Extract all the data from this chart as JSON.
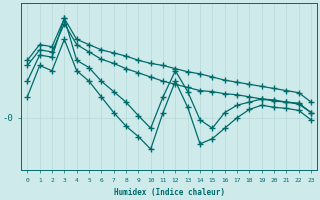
{
  "xlabel": "Humidex (Indice chaleur)",
  "ylabel": "-0",
  "background_color": "#ceeaea",
  "line_color": "#006b6b",
  "x_values": [
    0,
    1,
    2,
    3,
    4,
    5,
    6,
    7,
    8,
    9,
    10,
    11,
    12,
    13,
    14,
    15,
    16,
    17,
    18,
    19,
    20,
    21,
    22,
    23
  ],
  "series_smooth1": [
    5.5,
    7.0,
    6.8,
    9.5,
    7.5,
    7.0,
    6.5,
    6.2,
    5.9,
    5.5,
    5.2,
    5.0,
    4.7,
    4.4,
    4.2,
    3.9,
    3.6,
    3.4,
    3.2,
    3.0,
    2.8,
    2.6,
    2.4,
    1.5
  ],
  "series_smooth2": [
    5.0,
    6.5,
    6.3,
    9.0,
    7.0,
    6.3,
    5.6,
    5.2,
    4.7,
    4.3,
    3.9,
    3.5,
    3.2,
    2.9,
    2.6,
    2.5,
    2.3,
    2.2,
    2.0,
    1.8,
    1.7,
    1.5,
    1.4,
    0.5
  ],
  "series_wiggly1": [
    3.5,
    6.0,
    5.8,
    9.5,
    5.5,
    4.8,
    3.5,
    2.5,
    1.5,
    0.2,
    -1.0,
    2.0,
    4.5,
    2.5,
    -0.2,
    -1.0,
    0.5,
    1.2,
    1.5,
    1.8,
    1.6,
    1.5,
    1.3,
    0.5
  ],
  "series_wiggly2": [
    2.0,
    5.0,
    4.5,
    7.5,
    4.5,
    3.5,
    2.0,
    0.5,
    -0.8,
    -1.8,
    -3.0,
    0.5,
    3.5,
    1.0,
    -2.5,
    -2.0,
    -1.0,
    0.0,
    0.8,
    1.2,
    1.0,
    0.9,
    0.7,
    -0.2
  ],
  "ylim": [
    -5.0,
    11.0
  ],
  "ytick_pos": 0,
  "grid_color": "#b8d8d8",
  "marker": "+",
  "marker_size": 4,
  "lw": 0.9
}
